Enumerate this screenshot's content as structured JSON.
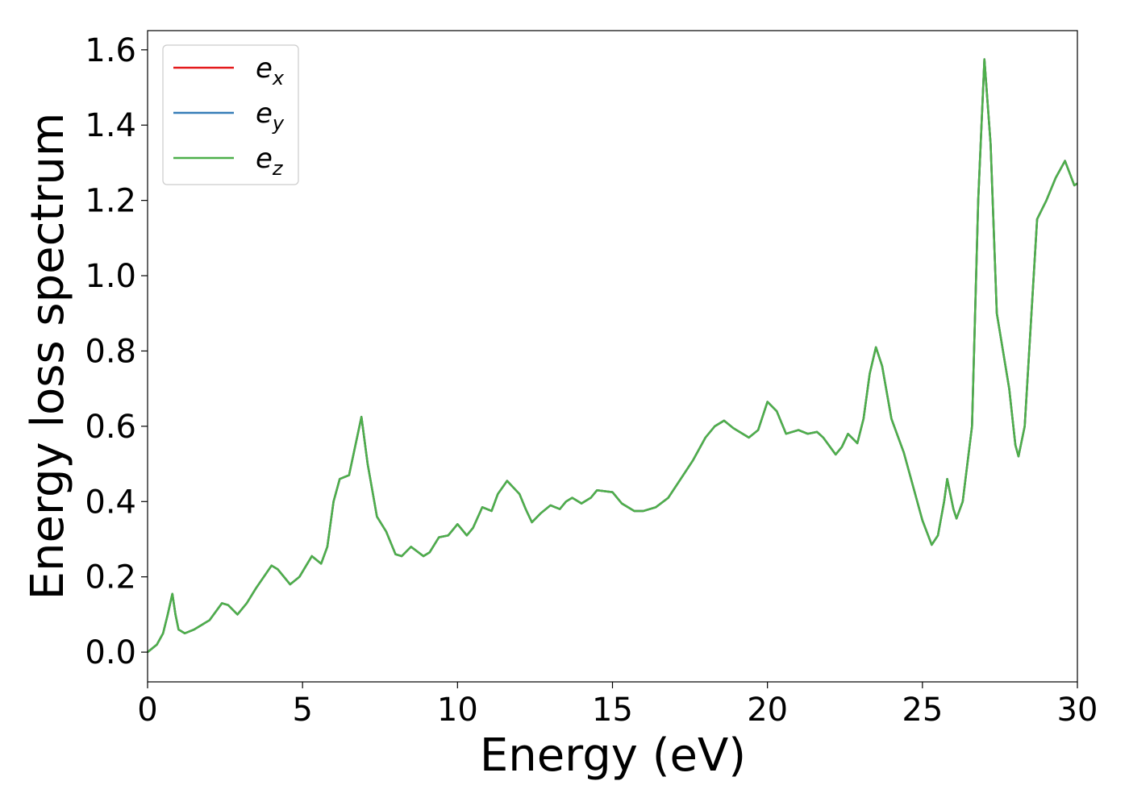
{
  "chart_data": {
    "type": "line",
    "xlabel": "Energy (eV)",
    "ylabel": "Energy loss spectrum",
    "xlim": [
      0,
      30
    ],
    "ylim": [
      -0.079,
      1.651
    ],
    "xticks": [
      0,
      5,
      10,
      15,
      20,
      25,
      30
    ],
    "yticks": [
      {
        "value": 0,
        "label": "0.0"
      },
      0.2,
      0.4,
      0.6,
      0.8,
      {
        "value": 1,
        "label": "1.0"
      },
      1.2,
      1.4,
      1.6
    ],
    "grid": false,
    "legend": "upper left",
    "x": [
      0,
      0.3,
      0.5,
      0.65,
      0.8,
      0.9,
      1.0,
      1.2,
      1.5,
      2.0,
      2.4,
      2.6,
      2.9,
      3.2,
      3.5,
      4.0,
      4.2,
      4.6,
      4.9,
      5.3,
      5.6,
      5.8,
      6.0,
      6.2,
      6.5,
      6.9,
      7.1,
      7.4,
      7.7,
      8.0,
      8.2,
      8.5,
      8.9,
      9.1,
      9.4,
      9.7,
      10.0,
      10.3,
      10.5,
      10.8,
      11.1,
      11.3,
      11.6,
      12.0,
      12.2,
      12.4,
      12.7,
      13.0,
      13.3,
      13.5,
      13.7,
      14.0,
      14.3,
      14.5,
      15.0,
      15.3,
      15.7,
      16.0,
      16.4,
      16.8,
      17.2,
      17.6,
      18.0,
      18.3,
      18.6,
      18.9,
      19.4,
      19.7,
      20.0,
      20.3,
      20.6,
      21.0,
      21.3,
      21.6,
      21.8,
      22.2,
      22.4,
      22.6,
      22.9,
      23.1,
      23.3,
      23.5,
      23.7,
      24.0,
      24.4,
      24.7,
      25.0,
      25.3,
      25.5,
      25.7,
      25.8,
      26.0,
      26.1,
      26.3,
      26.6,
      26.8,
      27.0,
      27.2,
      27.4,
      27.8,
      28.0,
      28.1,
      28.3,
      28.7,
      29.0,
      29.3,
      29.6,
      29.9,
      30.0
    ],
    "series": [
      {
        "name": "e",
        "subscript": "x",
        "color": "#e41a1c",
        "values": [
          0.0,
          0.02,
          0.05,
          0.1,
          0.155,
          0.1,
          0.06,
          0.05,
          0.06,
          0.085,
          0.13,
          0.125,
          0.1,
          0.13,
          0.17,
          0.23,
          0.22,
          0.18,
          0.2,
          0.255,
          0.235,
          0.28,
          0.4,
          0.46,
          0.47,
          0.625,
          0.5,
          0.36,
          0.32,
          0.26,
          0.255,
          0.28,
          0.255,
          0.265,
          0.305,
          0.31,
          0.34,
          0.31,
          0.33,
          0.385,
          0.375,
          0.42,
          0.455,
          0.42,
          0.38,
          0.345,
          0.37,
          0.39,
          0.38,
          0.4,
          0.41,
          0.395,
          0.41,
          0.43,
          0.425,
          0.395,
          0.375,
          0.375,
          0.385,
          0.41,
          0.46,
          0.51,
          0.57,
          0.6,
          0.615,
          0.595,
          0.57,
          0.59,
          0.665,
          0.64,
          0.58,
          0.59,
          0.58,
          0.585,
          0.57,
          0.525,
          0.545,
          0.58,
          0.555,
          0.62,
          0.74,
          0.81,
          0.76,
          0.62,
          0.53,
          0.44,
          0.35,
          0.285,
          0.31,
          0.4,
          0.46,
          0.38,
          0.355,
          0.4,
          0.6,
          1.2,
          1.575,
          1.35,
          0.9,
          0.7,
          0.55,
          0.52,
          0.6,
          1.15,
          1.2,
          1.26,
          1.305,
          1.24,
          1.245
        ]
      },
      {
        "name": "e",
        "subscript": "y",
        "color": "#377eb8",
        "values": [
          0.0,
          0.02,
          0.05,
          0.1,
          0.155,
          0.1,
          0.06,
          0.05,
          0.06,
          0.085,
          0.13,
          0.125,
          0.1,
          0.13,
          0.17,
          0.23,
          0.22,
          0.18,
          0.2,
          0.255,
          0.235,
          0.28,
          0.4,
          0.46,
          0.47,
          0.625,
          0.5,
          0.36,
          0.32,
          0.26,
          0.255,
          0.28,
          0.255,
          0.265,
          0.305,
          0.31,
          0.34,
          0.31,
          0.33,
          0.385,
          0.375,
          0.42,
          0.455,
          0.42,
          0.38,
          0.345,
          0.37,
          0.39,
          0.38,
          0.4,
          0.41,
          0.395,
          0.41,
          0.43,
          0.425,
          0.395,
          0.375,
          0.375,
          0.385,
          0.41,
          0.46,
          0.51,
          0.57,
          0.6,
          0.615,
          0.595,
          0.57,
          0.59,
          0.665,
          0.64,
          0.58,
          0.59,
          0.58,
          0.585,
          0.57,
          0.525,
          0.545,
          0.58,
          0.555,
          0.62,
          0.74,
          0.81,
          0.76,
          0.62,
          0.53,
          0.44,
          0.35,
          0.285,
          0.31,
          0.4,
          0.46,
          0.38,
          0.355,
          0.4,
          0.6,
          1.2,
          1.575,
          1.35,
          0.9,
          0.7,
          0.55,
          0.52,
          0.6,
          1.15,
          1.2,
          1.26,
          1.305,
          1.24,
          1.245
        ]
      },
      {
        "name": "e",
        "subscript": "z",
        "color": "#4daf4a",
        "values": [
          0.0,
          0.02,
          0.05,
          0.1,
          0.155,
          0.1,
          0.06,
          0.05,
          0.06,
          0.085,
          0.13,
          0.125,
          0.1,
          0.13,
          0.17,
          0.23,
          0.22,
          0.18,
          0.2,
          0.255,
          0.235,
          0.28,
          0.4,
          0.46,
          0.47,
          0.625,
          0.5,
          0.36,
          0.32,
          0.26,
          0.255,
          0.28,
          0.255,
          0.265,
          0.305,
          0.31,
          0.34,
          0.31,
          0.33,
          0.385,
          0.375,
          0.42,
          0.455,
          0.42,
          0.38,
          0.345,
          0.37,
          0.39,
          0.38,
          0.4,
          0.41,
          0.395,
          0.41,
          0.43,
          0.425,
          0.395,
          0.375,
          0.375,
          0.385,
          0.41,
          0.46,
          0.51,
          0.57,
          0.6,
          0.615,
          0.595,
          0.57,
          0.59,
          0.665,
          0.64,
          0.58,
          0.59,
          0.58,
          0.585,
          0.57,
          0.525,
          0.545,
          0.58,
          0.555,
          0.62,
          0.74,
          0.81,
          0.76,
          0.62,
          0.53,
          0.44,
          0.35,
          0.285,
          0.31,
          0.4,
          0.46,
          0.38,
          0.355,
          0.4,
          0.6,
          1.2,
          1.575,
          1.35,
          0.9,
          0.7,
          0.55,
          0.52,
          0.6,
          1.15,
          1.2,
          1.26,
          1.305,
          1.24,
          1.245
        ]
      }
    ]
  }
}
